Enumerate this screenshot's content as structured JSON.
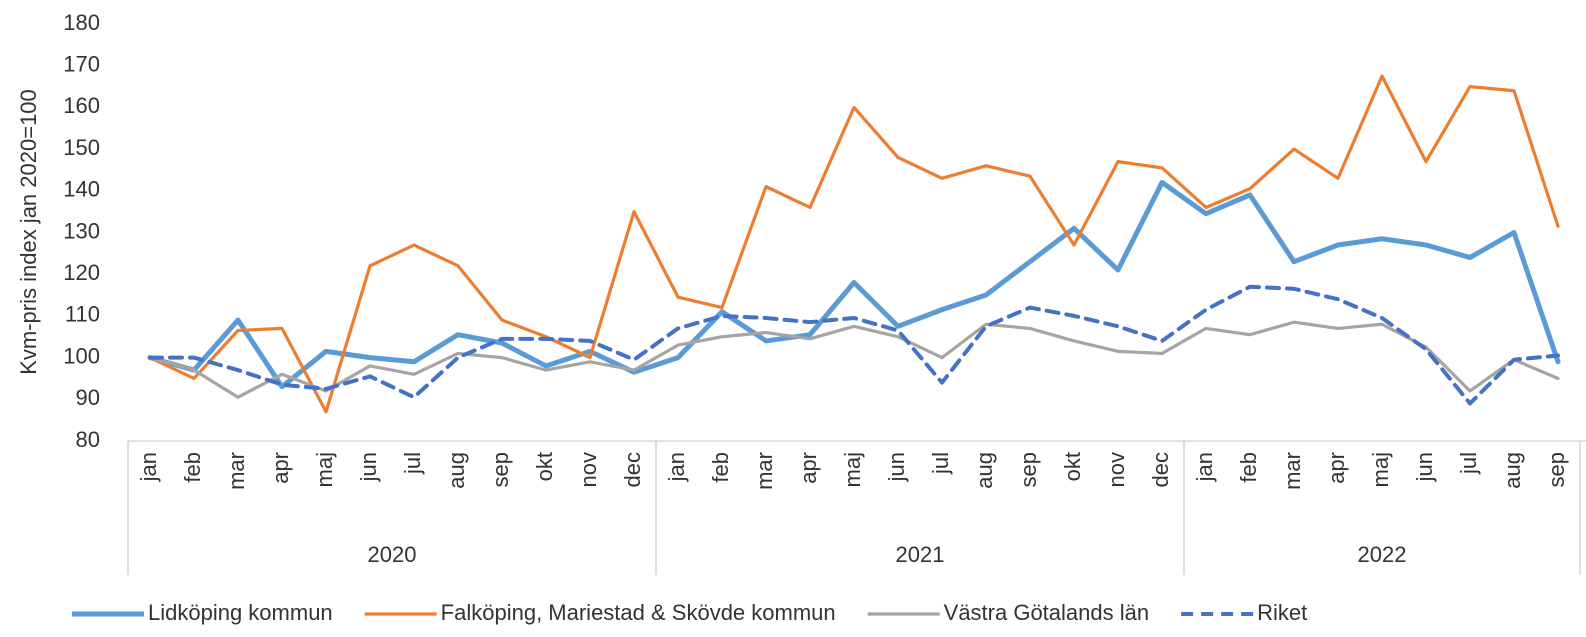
{
  "chart_data": {
    "type": "line",
    "y_label": "Kvm-pris index jan 2020=100",
    "groups": [
      {
        "label": "2020",
        "categories": [
          "jan",
          "feb",
          "mar",
          "apr",
          "maj",
          "jun",
          "jul",
          "aug",
          "sep",
          "okt",
          "nov",
          "dec"
        ]
      },
      {
        "label": "2021",
        "categories": [
          "jan",
          "feb",
          "mar",
          "apr",
          "maj",
          "jun",
          "jul",
          "aug",
          "sep",
          "okt",
          "nov",
          "dec"
        ]
      },
      {
        "label": "2022",
        "categories": [
          "jan",
          "feb",
          "mar",
          "apr",
          "maj",
          "jun",
          "jul",
          "aug",
          "sep"
        ]
      }
    ],
    "ylim": [
      80,
      180
    ],
    "yticks": [
      80,
      90,
      100,
      110,
      120,
      130,
      140,
      150,
      160,
      170,
      180
    ],
    "grid": false,
    "legend": "bottom",
    "series": [
      {
        "name": "Lidköping kommun",
        "color": "#5b9bd5",
        "dashed": false,
        "values": [
          100,
          97,
          109,
          93,
          101.5,
          100,
          99,
          105.5,
          103.5,
          98,
          101.5,
          96.5,
          100,
          111,
          104,
          105.5,
          118,
          107.5,
          111.5,
          115,
          123,
          131,
          121,
          142,
          134.5,
          139,
          123,
          127,
          128.5,
          127,
          124,
          130,
          99
        ]
      },
      {
        "name": "Falköping, Mariestad & Skövde kommun",
        "color": "#ed7d31",
        "dashed": false,
        "values": [
          100,
          95,
          106.5,
          107,
          87,
          122,
          127,
          122,
          109,
          105,
          100,
          135,
          114.5,
          112,
          141,
          136,
          160,
          148,
          143,
          146,
          143.5,
          127,
          147,
          145.5,
          136,
          140.5,
          150,
          143,
          167.5,
          147,
          165,
          164,
          131.5
        ]
      },
      {
        "name": "Västra Götalands län",
        "color": "#a5a5a5",
        "dashed": false,
        "values": [
          100,
          97,
          90.5,
          96,
          92,
          98,
          96,
          101,
          100,
          97,
          99,
          97,
          103,
          105,
          106,
          104.5,
          107.5,
          105,
          100,
          108,
          107,
          104,
          101.5,
          101,
          107,
          105.5,
          108.5,
          107,
          108,
          102.5,
          92,
          99.5,
          95
        ]
      },
      {
        "name": "Riket",
        "color": "#4472c4",
        "dashed": true,
        "values": [
          100,
          100,
          97,
          93.5,
          92.5,
          95.5,
          90.5,
          100,
          104.5,
          104.5,
          104,
          99.5,
          107,
          110,
          109.5,
          108.5,
          109.5,
          106.5,
          94,
          107.5,
          112,
          110,
          107.5,
          104,
          111.5,
          117,
          116.5,
          114,
          109.5,
          102,
          89,
          99.5,
          100.5
        ]
      }
    ]
  }
}
